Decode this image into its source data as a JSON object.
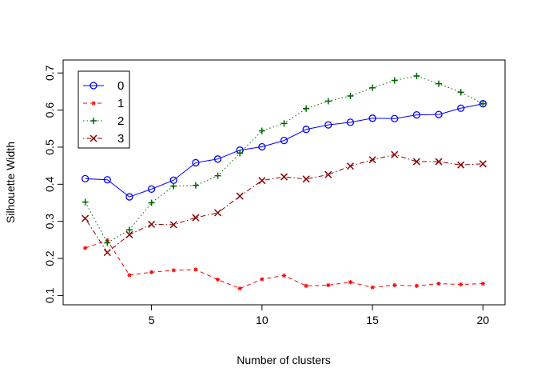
{
  "chart_data": {
    "type": "line",
    "title": "",
    "xlabel": "Number of clusters",
    "ylabel": "Silhouette Width",
    "xlim": [
      1,
      21
    ],
    "ylim": [
      0.075,
      0.735
    ],
    "xticks": [
      5,
      10,
      15,
      20
    ],
    "yticks": [
      0.1,
      0.2,
      0.3,
      0.4,
      0.5,
      0.6,
      0.7
    ],
    "grid": false,
    "legend_position": "top-left",
    "x": [
      2,
      3,
      4,
      5,
      6,
      7,
      8,
      9,
      10,
      11,
      12,
      13,
      14,
      15,
      16,
      17,
      18,
      19,
      20
    ],
    "series": [
      {
        "name": "0",
        "color": "#0000ff",
        "line_style": "solid",
        "marker": "circle",
        "values": [
          0.415,
          0.412,
          0.366,
          0.387,
          0.411,
          0.458,
          0.468,
          0.492,
          0.501,
          0.518,
          0.548,
          0.56,
          0.567,
          0.578,
          0.577,
          0.587,
          0.588,
          0.605,
          0.617
        ]
      },
      {
        "name": "1",
        "color": "#ff0000",
        "line_style": "dashed",
        "marker": "asterisk",
        "values": [
          0.228,
          0.249,
          0.155,
          0.163,
          0.168,
          0.17,
          0.143,
          0.119,
          0.144,
          0.154,
          0.126,
          0.128,
          0.136,
          0.122,
          0.128,
          0.126,
          0.132,
          0.13,
          0.132
        ]
      },
      {
        "name": "2",
        "color": "#006400",
        "line_style": "dotted",
        "marker": "plus",
        "values": [
          0.352,
          0.242,
          0.277,
          0.35,
          0.395,
          0.397,
          0.423,
          0.484,
          0.544,
          0.564,
          0.604,
          0.624,
          0.638,
          0.66,
          0.68,
          0.692,
          0.671,
          0.648,
          0.617
        ]
      },
      {
        "name": "3",
        "color": "#8b0000",
        "line_style": "dashdot",
        "marker": "x",
        "values": [
          0.308,
          0.216,
          0.264,
          0.292,
          0.291,
          0.31,
          0.323,
          0.368,
          0.41,
          0.42,
          0.414,
          0.426,
          0.449,
          0.466,
          0.48,
          0.461,
          0.461,
          0.452,
          0.455
        ]
      }
    ]
  }
}
